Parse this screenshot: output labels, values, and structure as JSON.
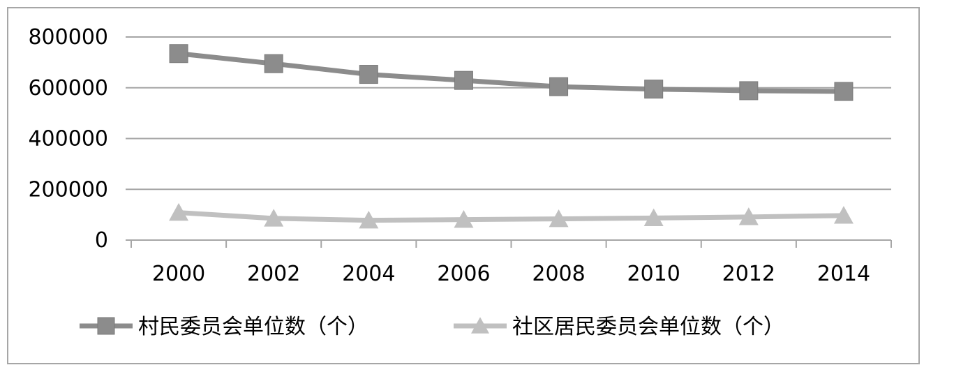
{
  "chart_data": {
    "type": "line",
    "x": [
      "2000",
      "2002",
      "2004",
      "2006",
      "2008",
      "2010",
      "2012",
      "2014"
    ],
    "ylim": [
      0,
      800000
    ],
    "yticks": [
      "0",
      "200000",
      "400000",
      "600000",
      "800000"
    ],
    "grid": true,
    "legend_position": "bottom",
    "series": [
      {
        "name": "村民委员会单位数（个）",
        "values": [
          734715,
          694987,
          652718,
          629079,
          604285,
          594658,
          588475,
          585451
        ],
        "color": "#8c8c8c",
        "marker": "square"
      },
      {
        "name": "社区居民委员会单位数（个）",
        "values": [
          108424,
          85400,
          77884,
          80717,
          83413,
          87057,
          91153,
          96693
        ],
        "color": "#c0c0c0",
        "marker": "triangle"
      }
    ]
  }
}
